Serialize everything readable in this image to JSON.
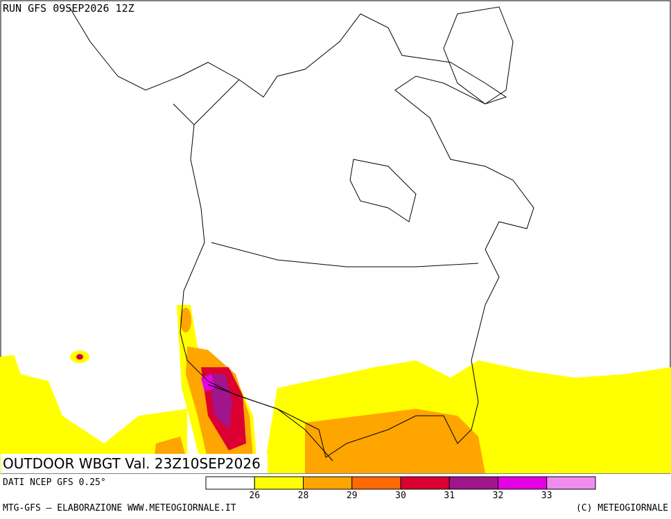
{
  "header": {
    "run": "RUN GFS 09SEP2026 12Z"
  },
  "map": {
    "title": "OUTDOOR WBGT Val. 23Z10SEP2026"
  },
  "legend": {
    "source": "DATI NCEP GFS 0.25°",
    "colors": [
      "#ffffff",
      "#ffff00",
      "#ffa500",
      "#ff6a00",
      "#dc0032",
      "#a0148c",
      "#e600e6",
      "#f08cf0"
    ],
    "ticks": [
      26,
      28,
      29,
      30,
      31,
      32,
      33
    ]
  },
  "footer": {
    "left": "MTG-GFS — ELABORAZIONE WWW.METEOGIORNALE.IT",
    "right": "(C) METEOGIORNALE"
  }
}
